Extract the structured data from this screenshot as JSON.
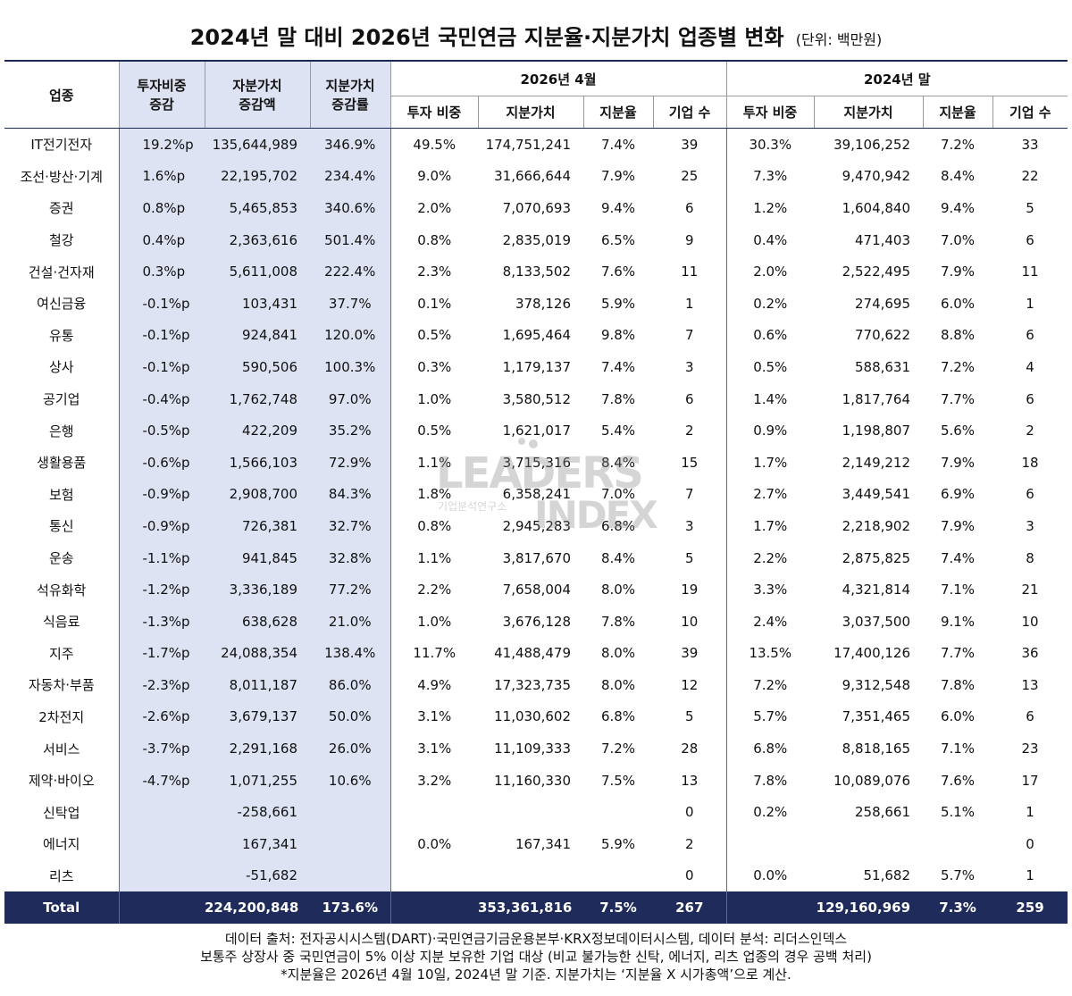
{
  "title": "2024년 말 대비 2026년 국민연금 지분율·지분가치 업종별 변화",
  "unit": "(단위: 백만원)",
  "headers": {
    "industry": "업종",
    "weight_change": [
      "투자비중",
      "증감"
    ],
    "value_change": [
      "자분가치",
      "증감액"
    ],
    "value_rate": [
      "지분가치",
      "증감률"
    ],
    "group_2026": "2026년 4월",
    "group_2024": "2024년 말",
    "sub": [
      "투자 비중",
      "지분가치",
      "지분율",
      "기업 수"
    ]
  },
  "rows": [
    [
      "IT전기전자",
      "19.2%p",
      "135,644,989",
      "346.9%",
      "49.5%",
      "174,751,241",
      "7.4%",
      "39",
      "30.3%",
      "39,106,252",
      "7.2%",
      "33"
    ],
    [
      "조선·방산·기계",
      "1.6%p",
      "22,195,702",
      "234.4%",
      "9.0%",
      "31,666,644",
      "7.9%",
      "25",
      "7.3%",
      "9,470,942",
      "8.4%",
      "22"
    ],
    [
      "증권",
      "0.8%p",
      "5,465,853",
      "340.6%",
      "2.0%",
      "7,070,693",
      "9.4%",
      "6",
      "1.2%",
      "1,604,840",
      "9.4%",
      "5"
    ],
    [
      "철강",
      "0.4%p",
      "2,363,616",
      "501.4%",
      "0.8%",
      "2,835,019",
      "6.5%",
      "9",
      "0.4%",
      "471,403",
      "7.0%",
      "6"
    ],
    [
      "건설·건자재",
      "0.3%p",
      "5,611,008",
      "222.4%",
      "2.3%",
      "8,133,502",
      "7.6%",
      "11",
      "2.0%",
      "2,522,495",
      "7.9%",
      "11"
    ],
    [
      "여신금융",
      "-0.1%p",
      "103,431",
      "37.7%",
      "0.1%",
      "378,126",
      "5.9%",
      "1",
      "0.2%",
      "274,695",
      "6.0%",
      "1"
    ],
    [
      "유통",
      "-0.1%p",
      "924,841",
      "120.0%",
      "0.5%",
      "1,695,464",
      "9.8%",
      "7",
      "0.6%",
      "770,622",
      "8.8%",
      "6"
    ],
    [
      "상사",
      "-0.1%p",
      "590,506",
      "100.3%",
      "0.3%",
      "1,179,137",
      "7.4%",
      "3",
      "0.5%",
      "588,631",
      "7.2%",
      "4"
    ],
    [
      "공기업",
      "-0.4%p",
      "1,762,748",
      "97.0%",
      "1.0%",
      "3,580,512",
      "7.8%",
      "6",
      "1.4%",
      "1,817,764",
      "7.7%",
      "6"
    ],
    [
      "은행",
      "-0.5%p",
      "422,209",
      "35.2%",
      "0.5%",
      "1,621,017",
      "5.4%",
      "2",
      "0.9%",
      "1,198,807",
      "5.6%",
      "2"
    ],
    [
      "생활용품",
      "-0.6%p",
      "1,566,103",
      "72.9%",
      "1.1%",
      "3,715,316",
      "8.4%",
      "15",
      "1.7%",
      "2,149,212",
      "7.9%",
      "18"
    ],
    [
      "보험",
      "-0.9%p",
      "2,908,700",
      "84.3%",
      "1.8%",
      "6,358,241",
      "7.0%",
      "7",
      "2.7%",
      "3,449,541",
      "6.9%",
      "6"
    ],
    [
      "통신",
      "-0.9%p",
      "726,381",
      "32.7%",
      "0.8%",
      "2,945,283",
      "6.8%",
      "3",
      "1.7%",
      "2,218,902",
      "7.9%",
      "3"
    ],
    [
      "운송",
      "-1.1%p",
      "941,845",
      "32.8%",
      "1.1%",
      "3,817,670",
      "8.4%",
      "5",
      "2.2%",
      "2,875,825",
      "7.4%",
      "8"
    ],
    [
      "석유화학",
      "-1.2%p",
      "3,336,189",
      "77.2%",
      "2.2%",
      "7,658,004",
      "8.0%",
      "19",
      "3.3%",
      "4,321,814",
      "7.1%",
      "21"
    ],
    [
      "식음료",
      "-1.3%p",
      "638,628",
      "21.0%",
      "1.0%",
      "3,676,128",
      "7.8%",
      "10",
      "2.4%",
      "3,037,500",
      "9.1%",
      "10"
    ],
    [
      "지주",
      "-1.7%p",
      "24,088,354",
      "138.4%",
      "11.7%",
      "41,488,479",
      "8.0%",
      "39",
      "13.5%",
      "17,400,126",
      "7.7%",
      "36"
    ],
    [
      "자동차·부품",
      "-2.3%p",
      "8,011,187",
      "86.0%",
      "4.9%",
      "17,323,735",
      "8.0%",
      "12",
      "7.2%",
      "9,312,548",
      "7.8%",
      "13"
    ],
    [
      "2차전지",
      "-2.6%p",
      "3,679,137",
      "50.0%",
      "3.1%",
      "11,030,602",
      "6.8%",
      "5",
      "5.7%",
      "7,351,465",
      "6.0%",
      "6"
    ],
    [
      "서비스",
      "-3.7%p",
      "2,291,168",
      "26.0%",
      "3.1%",
      "11,109,333",
      "7.2%",
      "28",
      "6.8%",
      "8,818,165",
      "7.1%",
      "23"
    ],
    [
      "제약·바이오",
      "-4.7%p",
      "1,071,255",
      "10.6%",
      "3.2%",
      "11,160,330",
      "7.5%",
      "13",
      "7.8%",
      "10,089,076",
      "7.6%",
      "17"
    ],
    [
      "신탁업",
      "",
      "-258,661",
      "",
      "",
      "",
      "",
      "0",
      "0.2%",
      "258,661",
      "5.1%",
      "1"
    ],
    [
      "에너지",
      "",
      "167,341",
      "",
      "0.0%",
      "167,341",
      "5.9%",
      "2",
      "",
      "",
      "",
      "0"
    ],
    [
      "리츠",
      "",
      "-51,682",
      "",
      "",
      "",
      "",
      "0",
      "0.0%",
      "51,682",
      "5.7%",
      "1"
    ]
  ],
  "total": [
    "Total",
    "",
    "224,200,848",
    "173.6%",
    "",
    "353,361,816",
    "7.5%",
    "267",
    "",
    "129,160,969",
    "7.3%",
    "259"
  ],
  "footer": [
    "데이터 출처: 전자공시시스템(DART)·국민연금기금운용본부·KRX정보데이터시스템, 데이터 분석: 리더스인덱스",
    "보통주 상장사 중 국민연금이 5% 이상 지분 보유한 기업 대상 (비교 불가능한 신탁, 에너지, 리츠 업종의 경우 공백 처리)",
    "*지분율은 2026년 4월 10일, 2024년 말 기준. 지분가치는 ‘지분율 X 시가총액’으로 계산."
  ],
  "watermark": {
    "line1": "LEADERS",
    "line2": "기업분석연구소",
    "line3": "INDEX"
  }
}
